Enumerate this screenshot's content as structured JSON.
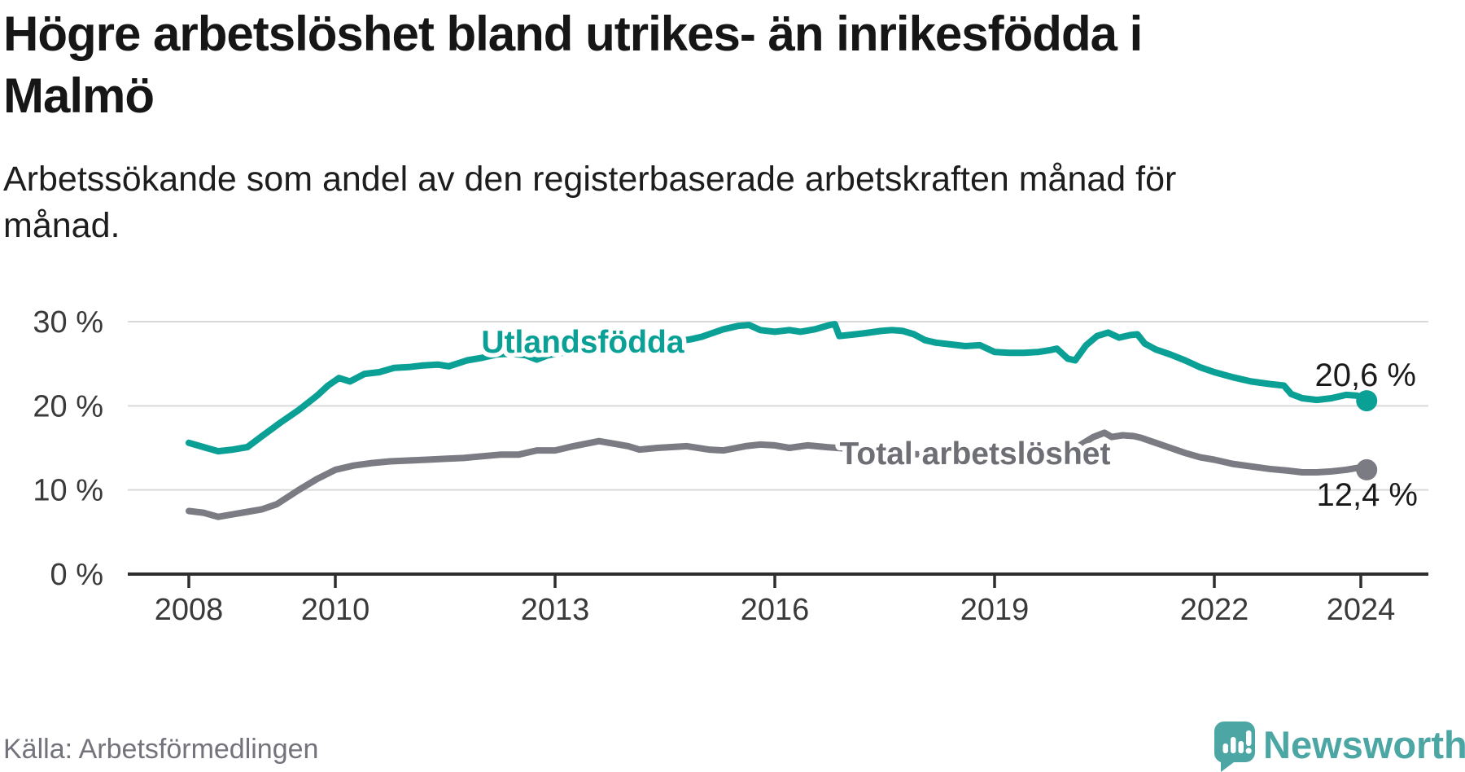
{
  "page": {
    "title_lines": [
      "Högre arbetslöshet bland utrikes- än inrikesfödda i",
      "Malmö"
    ],
    "subtitle_lines": [
      "Arbetssökande som andel av den registerbaserade arbetskraften månad för",
      "månad."
    ],
    "source": "Källa: Arbetsförmedlingen",
    "brand": {
      "name": "Newsworthy",
      "icon": "newsworthy-speech-bubble-chart-icon",
      "color": "#4ba6a4"
    }
  },
  "chart_data": {
    "type": "line",
    "title": "Högre arbetslöshet bland utrikes- än inrikesfödda i Malmö",
    "subtitle": "Arbetssökande som andel av den registerbaserade arbetskraften månad för månad.",
    "grid": "horizontal",
    "legend_position": "inline-labels",
    "xlim": [
      2007.17,
      2024.92
    ],
    "ylim": [
      0,
      31
    ],
    "x_ticks": {
      "values": [
        2008,
        2010,
        2013,
        2016,
        2019,
        2022,
        2024
      ],
      "labels": [
        "2008",
        "2010",
        "2013",
        "2016",
        "2019",
        "2022",
        "2024"
      ]
    },
    "y_ticks": {
      "values": [
        0,
        10,
        20,
        30
      ],
      "labels": [
        "0 %",
        "10 %",
        "20 %",
        "30 %"
      ]
    },
    "colors": {
      "grid": "#d9d9d9",
      "axis": "#2e2e2e",
      "tick_text": "#3a3a3a",
      "value_label_text": "#1a1a1a"
    },
    "series": [
      {
        "id": "utlandsfodda",
        "name": "Utlandsfödda",
        "color": "#0aa096",
        "label_color": "#0aa096",
        "end_label": "20,6 %",
        "end_value": 20.6,
        "points": [
          [
            2008.0,
            15.6
          ],
          [
            2008.2,
            15.1
          ],
          [
            2008.4,
            14.6
          ],
          [
            2008.6,
            14.8
          ],
          [
            2008.8,
            15.1
          ],
          [
            2009.0,
            16.4
          ],
          [
            2009.25,
            18.0
          ],
          [
            2009.5,
            19.5
          ],
          [
            2009.75,
            21.2
          ],
          [
            2009.9,
            22.4
          ],
          [
            2010.05,
            23.3
          ],
          [
            2010.2,
            22.9
          ],
          [
            2010.4,
            23.8
          ],
          [
            2010.6,
            24.0
          ],
          [
            2010.8,
            24.5
          ],
          [
            2011.0,
            24.6
          ],
          [
            2011.2,
            24.8
          ],
          [
            2011.4,
            24.9
          ],
          [
            2011.55,
            24.7
          ],
          [
            2011.8,
            25.4
          ],
          [
            2012.0,
            25.7
          ],
          [
            2012.2,
            26.1
          ],
          [
            2012.4,
            26.2
          ],
          [
            2012.6,
            26.0
          ],
          [
            2012.75,
            25.5
          ],
          [
            2012.9,
            26.0
          ],
          [
            2013.1,
            26.3
          ],
          [
            2013.35,
            26.5
          ],
          [
            2013.6,
            26.7
          ],
          [
            2013.8,
            26.9
          ],
          [
            2014.0,
            27.2
          ],
          [
            2014.3,
            27.4
          ],
          [
            2014.6,
            27.6
          ],
          [
            2014.85,
            27.9
          ],
          [
            2015.0,
            28.2
          ],
          [
            2015.3,
            29.1
          ],
          [
            2015.5,
            29.5
          ],
          [
            2015.65,
            29.6
          ],
          [
            2015.8,
            29.0
          ],
          [
            2016.0,
            28.8
          ],
          [
            2016.2,
            29.0
          ],
          [
            2016.35,
            28.8
          ],
          [
            2016.55,
            29.1
          ],
          [
            2016.75,
            29.6
          ],
          [
            2016.82,
            29.7
          ],
          [
            2016.88,
            28.3
          ],
          [
            2017.0,
            28.4
          ],
          [
            2017.2,
            28.6
          ],
          [
            2017.45,
            28.9
          ],
          [
            2017.6,
            29.0
          ],
          [
            2017.75,
            28.9
          ],
          [
            2017.9,
            28.5
          ],
          [
            2018.05,
            27.8
          ],
          [
            2018.2,
            27.5
          ],
          [
            2018.4,
            27.3
          ],
          [
            2018.6,
            27.1
          ],
          [
            2018.8,
            27.2
          ],
          [
            2019.0,
            26.4
          ],
          [
            2019.2,
            26.3
          ],
          [
            2019.4,
            26.3
          ],
          [
            2019.6,
            26.4
          ],
          [
            2019.75,
            26.6
          ],
          [
            2019.85,
            26.8
          ],
          [
            2020.0,
            25.6
          ],
          [
            2020.1,
            25.4
          ],
          [
            2020.25,
            27.2
          ],
          [
            2020.4,
            28.3
          ],
          [
            2020.55,
            28.7
          ],
          [
            2020.7,
            28.1
          ],
          [
            2020.85,
            28.4
          ],
          [
            2020.95,
            28.5
          ],
          [
            2021.05,
            27.4
          ],
          [
            2021.2,
            26.7
          ],
          [
            2021.4,
            26.1
          ],
          [
            2021.6,
            25.4
          ],
          [
            2021.8,
            24.6
          ],
          [
            2022.0,
            24.0
          ],
          [
            2022.25,
            23.4
          ],
          [
            2022.5,
            22.9
          ],
          [
            2022.75,
            22.6
          ],
          [
            2022.95,
            22.4
          ],
          [
            2023.05,
            21.4
          ],
          [
            2023.2,
            20.9
          ],
          [
            2023.4,
            20.7
          ],
          [
            2023.6,
            20.9
          ],
          [
            2023.8,
            21.3
          ],
          [
            2023.95,
            21.2
          ],
          [
            2024.08,
            20.6
          ]
        ]
      },
      {
        "id": "total-arbetsloshet",
        "name": "Total arbetslöshet",
        "color": "#7b7b83",
        "label_color": "#6e6e75",
        "end_label": "12,4 %",
        "end_value": 12.4,
        "points": [
          [
            2008.0,
            7.5
          ],
          [
            2008.2,
            7.3
          ],
          [
            2008.4,
            6.8
          ],
          [
            2008.6,
            7.1
          ],
          [
            2008.8,
            7.4
          ],
          [
            2009.0,
            7.7
          ],
          [
            2009.2,
            8.3
          ],
          [
            2009.5,
            10.0
          ],
          [
            2009.75,
            11.3
          ],
          [
            2010.0,
            12.4
          ],
          [
            2010.25,
            12.9
          ],
          [
            2010.5,
            13.2
          ],
          [
            2010.75,
            13.4
          ],
          [
            2011.0,
            13.5
          ],
          [
            2011.25,
            13.6
          ],
          [
            2011.5,
            13.7
          ],
          [
            2011.75,
            13.8
          ],
          [
            2012.0,
            14.0
          ],
          [
            2012.25,
            14.2
          ],
          [
            2012.5,
            14.2
          ],
          [
            2012.75,
            14.7
          ],
          [
            2013.0,
            14.7
          ],
          [
            2013.25,
            15.2
          ],
          [
            2013.6,
            15.8
          ],
          [
            2014.0,
            15.2
          ],
          [
            2014.15,
            14.8
          ],
          [
            2014.4,
            15.0
          ],
          [
            2014.8,
            15.2
          ],
          [
            2015.1,
            14.8
          ],
          [
            2015.3,
            14.7
          ],
          [
            2015.6,
            15.2
          ],
          [
            2015.8,
            15.4
          ],
          [
            2016.0,
            15.3
          ],
          [
            2016.2,
            15.0
          ],
          [
            2016.45,
            15.3
          ],
          [
            2016.7,
            15.1
          ],
          [
            2017.0,
            14.9
          ],
          [
            2017.25,
            14.8
          ],
          [
            2017.5,
            14.6
          ],
          [
            2017.75,
            14.4
          ],
          [
            2018.0,
            14.2
          ],
          [
            2018.25,
            14.1
          ],
          [
            2018.5,
            13.9
          ],
          [
            2018.75,
            13.7
          ],
          [
            2019.0,
            13.6
          ],
          [
            2019.25,
            13.7
          ],
          [
            2019.5,
            13.8
          ],
          [
            2019.75,
            14.0
          ],
          [
            2020.0,
            14.3
          ],
          [
            2020.2,
            15.5
          ],
          [
            2020.35,
            16.3
          ],
          [
            2020.5,
            16.8
          ],
          [
            2020.6,
            16.3
          ],
          [
            2020.75,
            16.5
          ],
          [
            2020.9,
            16.4
          ],
          [
            2021.0,
            16.2
          ],
          [
            2021.2,
            15.6
          ],
          [
            2021.4,
            15.0
          ],
          [
            2021.6,
            14.4
          ],
          [
            2021.8,
            13.9
          ],
          [
            2022.0,
            13.6
          ],
          [
            2022.25,
            13.1
          ],
          [
            2022.5,
            12.8
          ],
          [
            2022.75,
            12.5
          ],
          [
            2023.0,
            12.3
          ],
          [
            2023.2,
            12.1
          ],
          [
            2023.4,
            12.1
          ],
          [
            2023.6,
            12.2
          ],
          [
            2023.8,
            12.4
          ],
          [
            2024.0,
            12.7
          ],
          [
            2024.08,
            12.4
          ]
        ]
      }
    ]
  }
}
